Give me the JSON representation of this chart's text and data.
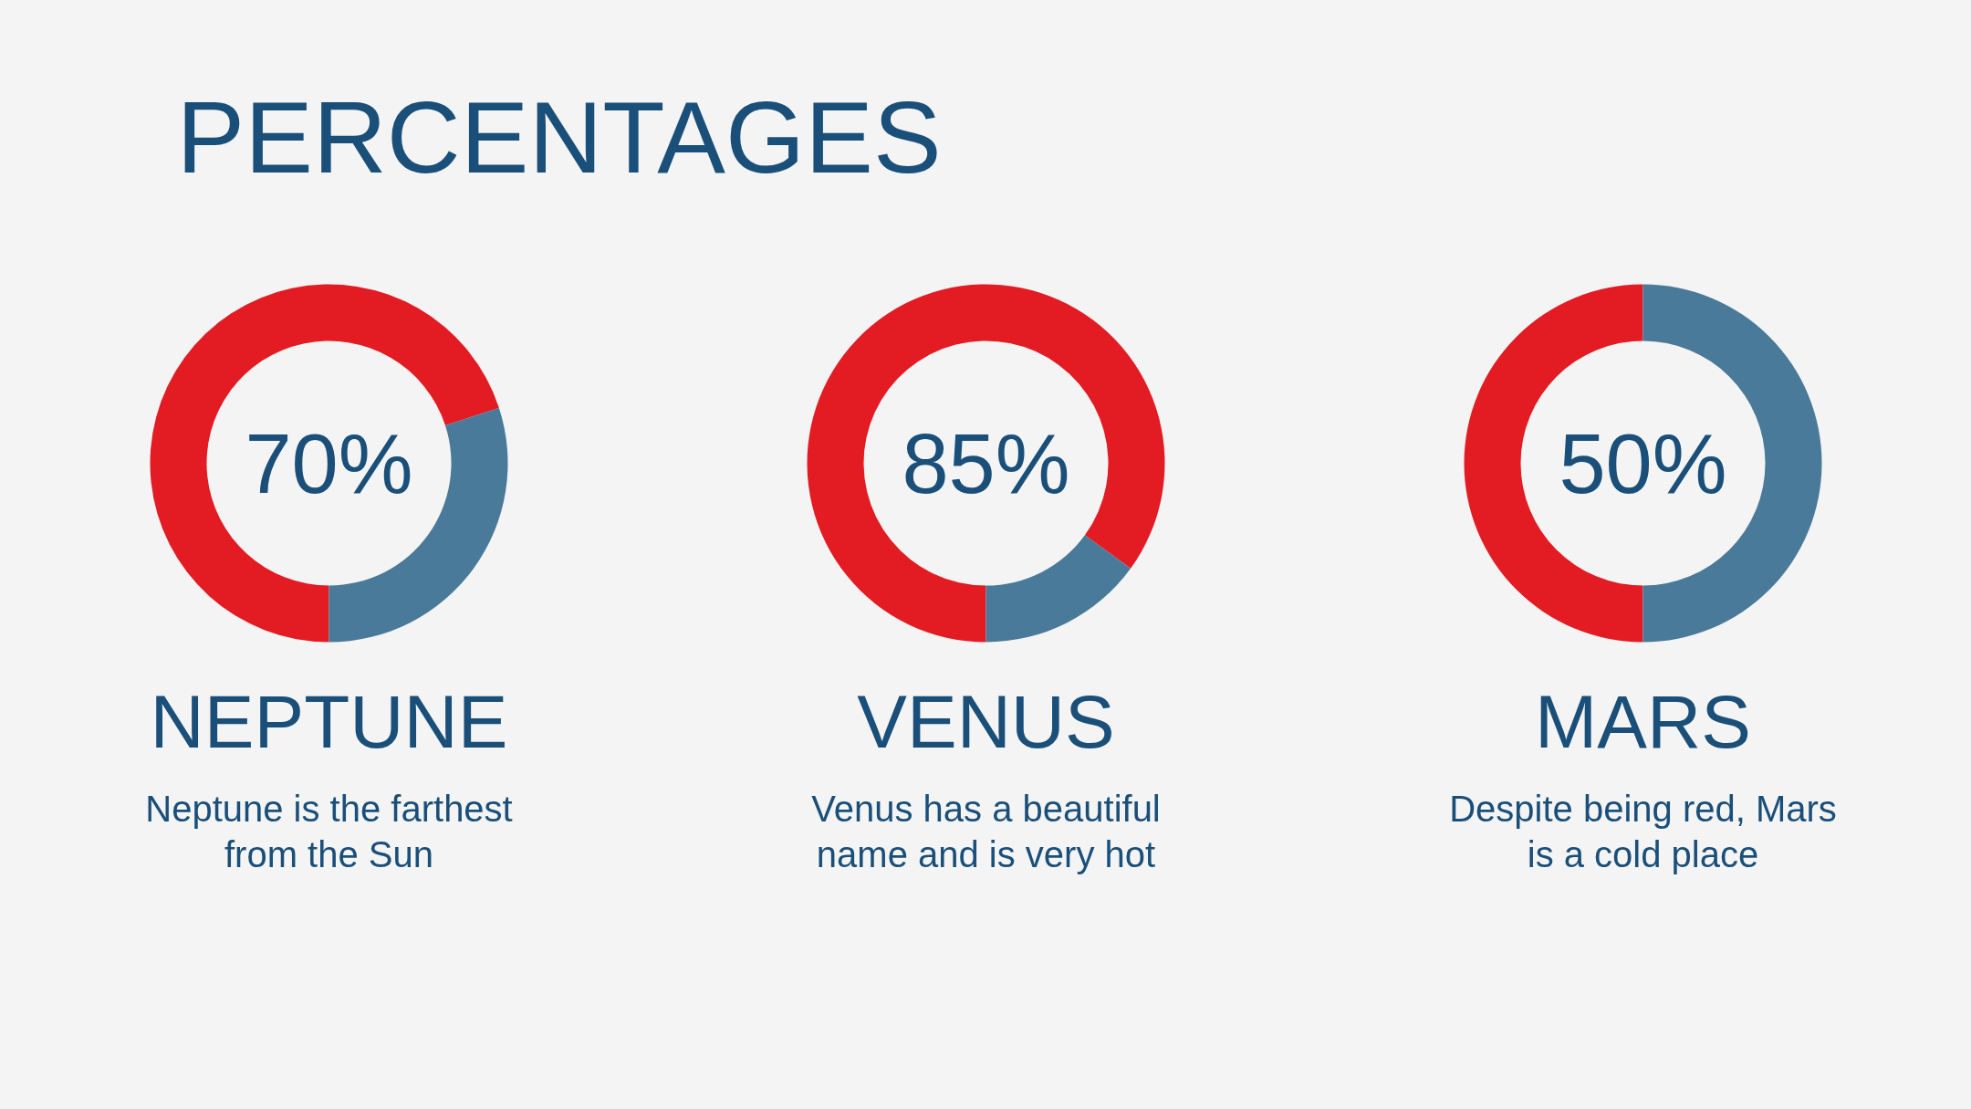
{
  "chart_data": [
    {
      "type": "other",
      "title": "PERCENTAGES"
    },
    {
      "type": "donut",
      "title": "NEPTUNE",
      "subtitle": "Neptune is the farthest from the Sun",
      "categories": [
        null,
        null
      ],
      "values": [
        70,
        30
      ],
      "colors": [
        "#e31b23",
        "#4a7a99"
      ],
      "annotations": [
        "70%"
      ]
    },
    {
      "type": "donut",
      "title": "VENUS",
      "subtitle": "Venus has a beautiful name and is very hot",
      "categories": [
        null,
        null
      ],
      "values": [
        85,
        15
      ],
      "colors": [
        "#e31b23",
        "#4a7a99"
      ],
      "annotations": [
        "85%"
      ]
    },
    {
      "type": "donut",
      "title": "MARS",
      "subtitle": "Despite being red, Mars is a cold place",
      "categories": [
        null,
        null
      ],
      "values": [
        50,
        50
      ],
      "colors": [
        "#e31b23",
        "#4a7a99"
      ],
      "annotations": [
        "50%"
      ]
    }
  ]
}
